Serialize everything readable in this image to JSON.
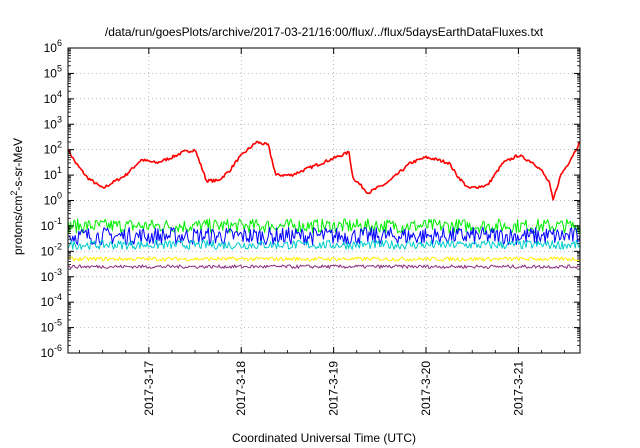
{
  "chart_data": {
    "type": "line",
    "title": "/data/run/goesPlots/archive/2017-03-21/16:00/flux/../flux/5daysEarthDataFluxes.txt",
    "xlabel": "Coordinated Universal Time (UTC)",
    "ylabel": "protons/cm²-s-sr-MeV",
    "y_scale": "log",
    "ylim": [
      1e-06,
      1000000.0
    ],
    "xlim": [
      "2017-03-16 03:00",
      "2017-03-21 16:00"
    ],
    "grid": "dotted",
    "x_ticks": [
      {
        "label": "2017-3-17",
        "at": "2017-03-17 00:00"
      },
      {
        "label": "2017-3-18",
        "at": "2017-03-18 00:00"
      },
      {
        "label": "2017-3-19",
        "at": "2017-03-19 00:00"
      },
      {
        "label": "2017-3-20",
        "at": "2017-03-20 00:00"
      },
      {
        "label": "2017-3-21",
        "at": "2017-03-21 00:00"
      }
    ],
    "y_ticks": [
      {
        "base": "10",
        "exp": "-6"
      },
      {
        "base": "10",
        "exp": "-5"
      },
      {
        "base": "10",
        "exp": "-4"
      },
      {
        "base": "10",
        "exp": "-3"
      },
      {
        "base": "10",
        "exp": "-2"
      },
      {
        "base": "10",
        "exp": "-1"
      },
      {
        "base": "10",
        "exp": "0"
      },
      {
        "base": "10",
        "exp": "1"
      },
      {
        "base": "10",
        "exp": "2"
      },
      {
        "base": "10",
        "exp": "3"
      },
      {
        "base": "10",
        "exp": "4"
      },
      {
        "base": "10",
        "exp": "5"
      },
      {
        "base": "10",
        "exp": "6"
      }
    ],
    "series": [
      {
        "color": "#ff0000",
        "x": [
          "2017-03-16 03:00",
          "2017-03-16 05:00",
          "2017-03-16 08:00",
          "2017-03-16 12:00",
          "2017-03-16 18:00",
          "2017-03-16 22:00",
          "2017-03-17 02:00",
          "2017-03-17 06:00",
          "2017-03-17 09:00",
          "2017-03-17 12:00",
          "2017-03-17 15:00",
          "2017-03-17 18:00",
          "2017-03-17 21:00",
          "2017-03-17 23:00",
          "2017-03-18 01:00",
          "2017-03-18 04:00",
          "2017-03-18 07:00",
          "2017-03-18 09:00",
          "2017-03-18 13:00",
          "2017-03-18 18:00",
          "2017-03-18 23:00",
          "2017-03-19 02:00",
          "2017-03-19 04:00",
          "2017-03-19 05:00",
          "2017-03-19 09:00",
          "2017-03-19 14:00",
          "2017-03-19 20:00",
          "2017-03-20 00:00",
          "2017-03-20 03:00",
          "2017-03-20 06:00",
          "2017-03-20 08:00",
          "2017-03-20 11:00",
          "2017-03-20 16:00",
          "2017-03-20 20:00",
          "2017-03-21 00:00",
          "2017-03-21 04:00",
          "2017-03-21 06:00",
          "2017-03-21 08:00",
          "2017-03-21 09:00",
          "2017-03-21 11:00",
          "2017-03-21 13:00",
          "2017-03-21 16:00"
        ],
        "values": [
          100,
          30,
          8,
          3,
          10,
          40,
          30,
          50,
          80,
          100,
          6,
          6,
          15,
          40,
          80,
          200,
          150,
          10,
          10,
          20,
          40,
          60,
          80,
          8,
          2,
          5,
          30,
          50,
          40,
          30,
          10,
          3,
          4,
          30,
          60,
          30,
          15,
          5,
          1,
          10,
          30,
          200
        ]
      },
      {
        "color": "#00ee00",
        "x": [
          "2017-03-16 03:00",
          "2017-03-21 16:00"
        ],
        "values": [
          0.1,
          0.1
        ]
      },
      {
        "color": "#0000ff",
        "x": [
          "2017-03-16 03:00",
          "2017-03-21 16:00"
        ],
        "values": [
          0.04,
          0.04
        ]
      },
      {
        "color": "#00cccc",
        "x": [
          "2017-03-16 03:00",
          "2017-03-21 16:00"
        ],
        "values": [
          0.018,
          0.018
        ]
      },
      {
        "color": "#ffee00",
        "x": [
          "2017-03-16 03:00",
          "2017-03-21 16:00"
        ],
        "values": [
          0.005,
          0.005
        ]
      },
      {
        "color": "#8b2c7a",
        "x": [
          "2017-03-16 03:00",
          "2017-03-21 16:00"
        ],
        "values": [
          0.0025,
          0.0025
        ]
      }
    ]
  }
}
